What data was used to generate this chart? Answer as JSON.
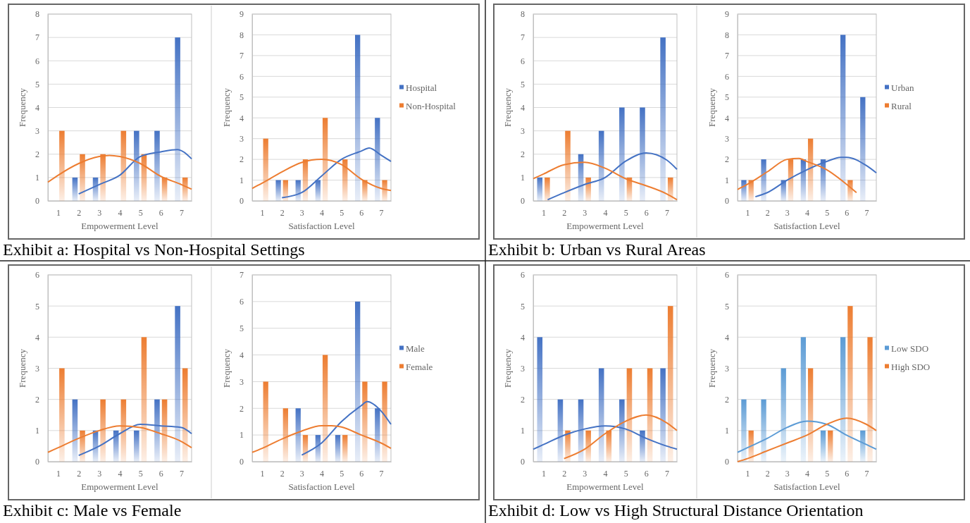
{
  "chart_data": [
    {
      "type": "bar",
      "x": [
        1,
        2,
        3,
        4,
        5,
        6,
        7
      ],
      "xlim": [
        0.5,
        7.5
      ],
      "xticks": [
        1,
        2,
        3,
        4,
        5,
        6,
        7
      ],
      "ylim": [
        0,
        8
      ],
      "yticks": [
        0,
        1,
        2,
        3,
        4,
        5,
        6,
        7,
        8
      ],
      "grid": "y",
      "xlabel": "Empowerment Level",
      "ylabel": "Frequency",
      "annotations": [
        "Exhibit a: Hospital vs Non-Hospital Settings"
      ],
      "series": [
        {
          "color": "#4472c4",
          "values": [
            0,
            1,
            1,
            0,
            3,
            3,
            7
          ]
        },
        {
          "color": "#ed7d31",
          "values": [
            3,
            2,
            2,
            3,
            2,
            1,
            1
          ]
        },
        {
          "type": "line",
          "color": "#4472c4",
          "x": [
            2,
            3,
            4,
            5,
            6,
            6.8,
            7.5
          ],
          "values": [
            0.3,
            0.7,
            1.1,
            1.9,
            2.1,
            2.2,
            1.8
          ]
        },
        {
          "type": "line",
          "color": "#ed7d31",
          "x": [
            0.5,
            1,
            2,
            3,
            3.5,
            4,
            5,
            6,
            7,
            7.5
          ],
          "values": [
            0.8,
            1.1,
            1.6,
            1.9,
            1.95,
            1.9,
            1.6,
            1.05,
            0.7,
            0.5
          ]
        }
      ]
    },
    {
      "type": "bar",
      "x": [
        1,
        2,
        3,
        4,
        5,
        6,
        7
      ],
      "xlim": [
        0.5,
        7.5
      ],
      "xticks": [
        1,
        2,
        3,
        4,
        5,
        6,
        7
      ],
      "ylim": [
        0,
        9
      ],
      "yticks": [
        0,
        1,
        2,
        3,
        4,
        5,
        6,
        7,
        8,
        9
      ],
      "grid": "y",
      "legend": "right",
      "xlabel": "Satisfaction Level",
      "ylabel": "Frequency",
      "series": [
        {
          "name": "Hospital",
          "color": "#4472c4",
          "values": [
            0,
            1,
            1,
            1,
            0,
            8,
            4
          ]
        },
        {
          "name": "Non-Hospital",
          "color": "#ed7d31",
          "values": [
            3,
            1,
            2,
            4,
            2,
            1,
            1
          ]
        },
        {
          "type": "line",
          "color": "#4472c4",
          "x": [
            2,
            3,
            4,
            5,
            6,
            6.4,
            7,
            7.5
          ],
          "values": [
            0.15,
            0.4,
            1.2,
            2.0,
            2.4,
            2.55,
            2.2,
            1.9
          ]
        },
        {
          "type": "line",
          "color": "#ed7d31",
          "x": [
            0.5,
            1,
            2,
            3,
            4,
            5,
            6,
            7,
            7.5
          ],
          "values": [
            0.6,
            0.85,
            1.4,
            1.85,
            2.0,
            1.75,
            1.05,
            0.6,
            0.5
          ]
        }
      ]
    },
    {
      "type": "bar",
      "x": [
        1,
        2,
        3,
        4,
        5,
        6,
        7
      ],
      "xlim": [
        0.5,
        7.5
      ],
      "xticks": [
        1,
        2,
        3,
        4,
        5,
        6,
        7
      ],
      "ylim": [
        0,
        8
      ],
      "yticks": [
        0,
        1,
        2,
        3,
        4,
        5,
        6,
        7,
        8
      ],
      "grid": "y",
      "xlabel": "Empowerment Level",
      "ylabel": "Frequency",
      "annotations": [
        "Exhibit b: Urban vs Rural Areas"
      ],
      "series": [
        {
          "color": "#4472c4",
          "values": [
            1,
            0,
            2,
            3,
            4,
            4,
            7
          ]
        },
        {
          "color": "#ed7d31",
          "values": [
            1,
            3,
            1,
            0,
            1,
            0,
            1
          ]
        },
        {
          "type": "line",
          "color": "#4472c4",
          "x": [
            1.2,
            2,
            3,
            4,
            5,
            6,
            7,
            7.5
          ],
          "values": [
            0.05,
            0.35,
            0.7,
            1.0,
            1.7,
            2.05,
            1.75,
            1.35
          ]
        },
        {
          "type": "line",
          "color": "#ed7d31",
          "x": [
            0.5,
            1,
            2,
            3,
            4,
            5,
            6,
            7,
            7.5
          ],
          "values": [
            0.95,
            1.15,
            1.55,
            1.65,
            1.4,
            0.95,
            0.65,
            0.3,
            0.05
          ]
        }
      ]
    },
    {
      "type": "bar",
      "x": [
        1,
        2,
        3,
        4,
        5,
        6,
        7
      ],
      "xlim": [
        0.5,
        7.5
      ],
      "xticks": [
        1,
        2,
        3,
        4,
        5,
        6,
        7
      ],
      "ylim": [
        0,
        9
      ],
      "yticks": [
        0,
        1,
        2,
        3,
        4,
        5,
        6,
        7,
        8,
        9
      ],
      "grid": "y",
      "legend": "right",
      "xlabel": "Satisfaction Level",
      "ylabel": "Frequency",
      "series": [
        {
          "name": "Urban",
          "color": "#4472c4",
          "values": [
            1,
            2,
            1,
            2,
            2,
            8,
            5
          ]
        },
        {
          "name": "Rural",
          "color": "#ed7d31",
          "values": [
            1,
            0,
            2,
            3,
            0,
            1,
            0
          ]
        },
        {
          "type": "line",
          "color": "#4472c4",
          "x": [
            1.4,
            2,
            3,
            4,
            5,
            5.7,
            6,
            7,
            7.5
          ],
          "values": [
            0.2,
            0.4,
            1.0,
            1.5,
            1.9,
            2.1,
            2.1,
            1.7,
            1.35
          ]
        },
        {
          "type": "line",
          "color": "#ed7d31",
          "x": [
            0.5,
            1,
            2,
            3,
            3.6,
            4,
            5,
            6,
            6.5
          ],
          "values": [
            0.55,
            0.8,
            1.4,
            2.0,
            2.05,
            1.9,
            1.5,
            0.8,
            0.4
          ]
        }
      ]
    },
    {
      "type": "bar",
      "x": [
        1,
        2,
        3,
        4,
        5,
        6,
        7
      ],
      "xlim": [
        0.5,
        7.5
      ],
      "xticks": [
        1,
        2,
        3,
        4,
        5,
        6,
        7
      ],
      "ylim": [
        0,
        6
      ],
      "yticks": [
        0,
        1,
        2,
        3,
        4,
        5,
        6
      ],
      "grid": "y",
      "xlabel": "Empowerment Level",
      "ylabel": "Frequency",
      "annotations": [
        "Exhibit c: Male vs Female"
      ],
      "series": [
        {
          "color": "#4472c4",
          "values": [
            0,
            2,
            1,
            1,
            1,
            2,
            5
          ]
        },
        {
          "color": "#ed7d31",
          "values": [
            3,
            1,
            2,
            2,
            4,
            2,
            3
          ]
        },
        {
          "type": "line",
          "color": "#4472c4",
          "x": [
            2,
            3,
            4,
            5,
            6,
            7,
            7.5
          ],
          "values": [
            0.2,
            0.5,
            0.9,
            1.2,
            1.15,
            1.1,
            0.9
          ]
        },
        {
          "type": "line",
          "color": "#ed7d31",
          "x": [
            0.5,
            1,
            2,
            3,
            4,
            5,
            6,
            7,
            7.5
          ],
          "values": [
            0.3,
            0.45,
            0.75,
            1.0,
            1.15,
            1.1,
            0.9,
            0.65,
            0.45
          ]
        }
      ]
    },
    {
      "type": "bar",
      "x": [
        1,
        2,
        3,
        4,
        5,
        6,
        7
      ],
      "xlim": [
        0.5,
        7.5
      ],
      "xticks": [
        1,
        2,
        3,
        4,
        5,
        6,
        7
      ],
      "ylim": [
        0,
        7
      ],
      "yticks": [
        0,
        1,
        2,
        3,
        4,
        5,
        6,
        7
      ],
      "grid": "y",
      "legend": "right",
      "xlabel": "Satisfaction Level",
      "ylabel": "Frequency",
      "series": [
        {
          "name": "Male",
          "color": "#4472c4",
          "values": [
            0,
            0,
            2,
            1,
            1,
            6,
            2
          ]
        },
        {
          "name": "Female",
          "color": "#ed7d31",
          "values": [
            3,
            2,
            1,
            4,
            1,
            3,
            3
          ]
        },
        {
          "type": "line",
          "color": "#4472c4",
          "x": [
            3,
            4,
            5,
            6,
            6.3,
            7,
            7.5
          ],
          "values": [
            0.25,
            0.7,
            1.5,
            2.1,
            2.25,
            1.9,
            1.4
          ]
        },
        {
          "type": "line",
          "color": "#ed7d31",
          "x": [
            0.5,
            1,
            2,
            3,
            4,
            4.5,
            5,
            6,
            7,
            7.5
          ],
          "values": [
            0.35,
            0.5,
            0.85,
            1.15,
            1.35,
            1.35,
            1.3,
            1.0,
            0.7,
            0.5
          ]
        }
      ]
    },
    {
      "type": "bar",
      "x": [
        1,
        2,
        3,
        4,
        5,
        6,
        7
      ],
      "xlim": [
        0.5,
        7.5
      ],
      "xticks": [
        1,
        2,
        3,
        4,
        5,
        6,
        7
      ],
      "ylim": [
        0,
        6
      ],
      "yticks": [
        0,
        1,
        2,
        3,
        4,
        5,
        6
      ],
      "grid": "y",
      "xlabel": "Empowerment Level",
      "ylabel": "Frequency",
      "annotations": [
        "Exhibit d: Low vs High Structural Distance Orientation"
      ],
      "series": [
        {
          "color": "#4472c4",
          "values": [
            4,
            2,
            2,
            3,
            2,
            1,
            3
          ]
        },
        {
          "color": "#ed7d31",
          "values": [
            0,
            1,
            1,
            1,
            3,
            3,
            5
          ]
        },
        {
          "type": "line",
          "color": "#4472c4",
          "x": [
            0.5,
            1,
            2,
            3,
            4,
            5,
            6,
            7,
            7.5
          ],
          "values": [
            0.4,
            0.55,
            0.85,
            1.05,
            1.15,
            1.05,
            0.75,
            0.5,
            0.4
          ]
        },
        {
          "type": "line",
          "color": "#ed7d31",
          "x": [
            2,
            3,
            4,
            5,
            6,
            7,
            7.5
          ],
          "values": [
            0.1,
            0.4,
            0.9,
            1.3,
            1.5,
            1.25,
            1.0
          ]
        }
      ]
    },
    {
      "type": "bar",
      "x": [
        1,
        2,
        3,
        4,
        5,
        6,
        7
      ],
      "xlim": [
        0.5,
        7.5
      ],
      "xticks": [
        1,
        2,
        3,
        4,
        5,
        6,
        7
      ],
      "ylim": [
        0,
        6
      ],
      "yticks": [
        0,
        1,
        2,
        3,
        4,
        5,
        6
      ],
      "grid": "y",
      "legend": "right",
      "xlabel": "Satisfaction Level",
      "ylabel": "Frequency",
      "series": [
        {
          "name": "Low SDO",
          "color": "#5b9bd5",
          "values": [
            2,
            2,
            3,
            4,
            1,
            4,
            1
          ]
        },
        {
          "name": "High SDO",
          "color": "#ed7d31",
          "values": [
            1,
            0,
            0,
            3,
            1,
            5,
            4
          ]
        },
        {
          "type": "line",
          "color": "#5b9bd5",
          "x": [
            0.5,
            1,
            2,
            3,
            4,
            5,
            6,
            7,
            7.5
          ],
          "values": [
            0.3,
            0.45,
            0.75,
            1.1,
            1.3,
            1.2,
            0.85,
            0.55,
            0.4
          ]
        },
        {
          "type": "line",
          "color": "#ed7d31",
          "x": [
            0.5,
            1,
            2,
            3,
            4,
            5,
            6,
            7,
            7.5
          ],
          "values": [
            0,
            0.1,
            0.35,
            0.6,
            0.85,
            1.2,
            1.4,
            1.2,
            1.0
          ]
        }
      ]
    }
  ]
}
